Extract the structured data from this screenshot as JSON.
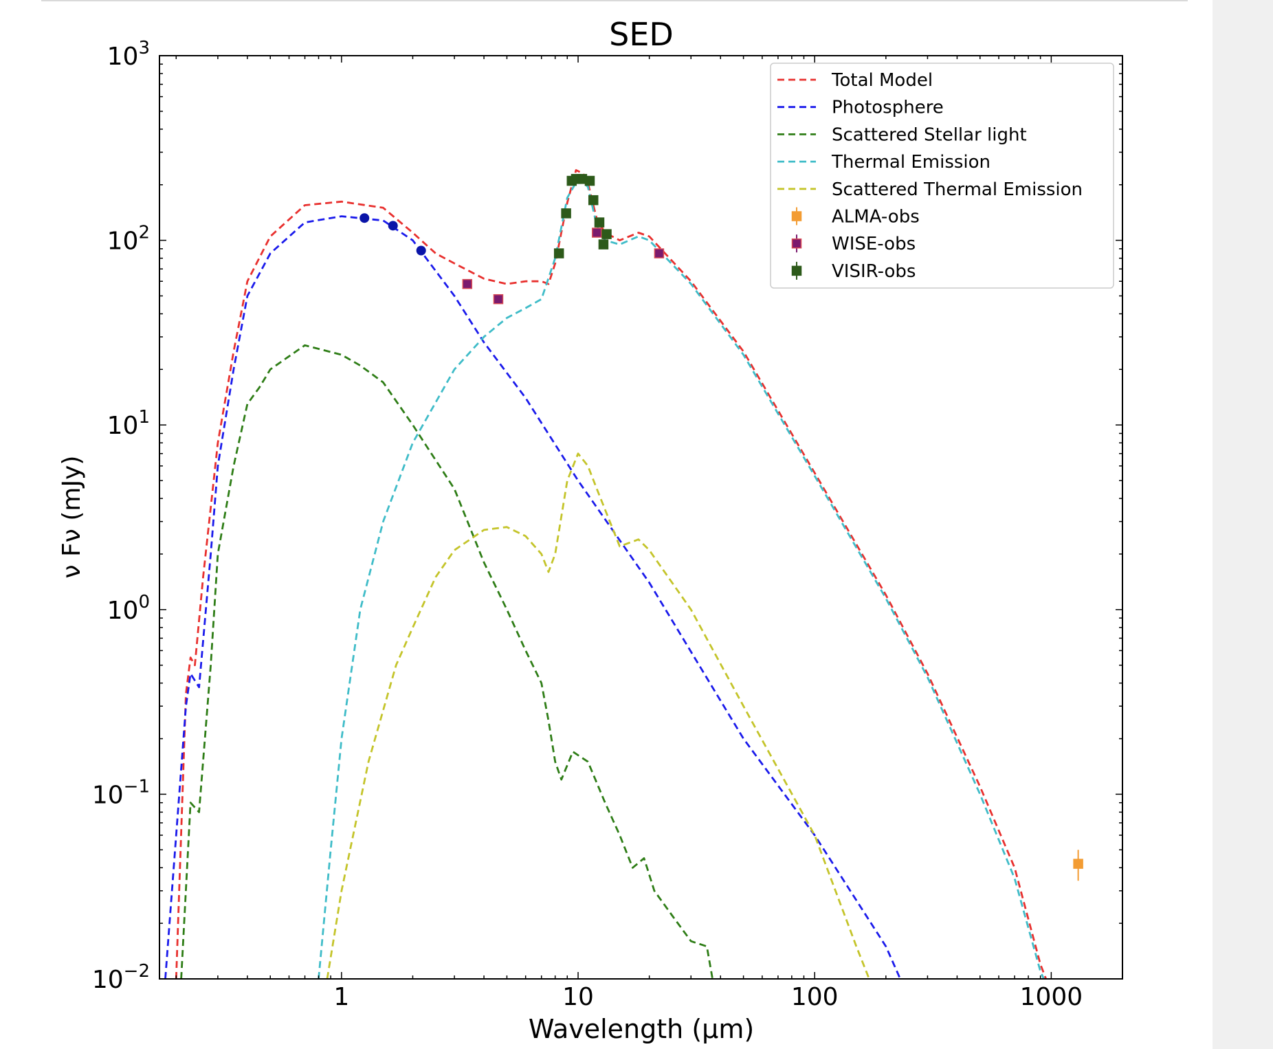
{
  "chart_data": {
    "type": "line",
    "title": "SED",
    "xlabel": "Wavelength (μm)",
    "ylabel": "ν Fν (mJy)",
    "xscale": "log",
    "yscale": "log",
    "xlim": [
      0.17,
      2000
    ],
    "ylim": [
      0.01,
      1000
    ],
    "x_ticks": [
      {
        "value": 1,
        "label": "1"
      },
      {
        "value": 10,
        "label": "10"
      },
      {
        "value": 100,
        "label": "100"
      },
      {
        "value": 1000,
        "label": "1000"
      }
    ],
    "y_ticks": [
      {
        "value": 0.01,
        "base": "10",
        "exp": "−2"
      },
      {
        "value": 0.1,
        "base": "10",
        "exp": "−1"
      },
      {
        "value": 1,
        "base": "10",
        "exp": "0"
      },
      {
        "value": 10,
        "base": "10",
        "exp": "1"
      },
      {
        "value": 100,
        "base": "10",
        "exp": "2"
      },
      {
        "value": 1000,
        "base": "10",
        "exp": "3"
      }
    ],
    "grid": false,
    "legend_position": "top-right",
    "series": [
      {
        "name": "Total Model",
        "color": "#e8302e",
        "style": "dashed",
        "points": [
          [
            0.2,
            0.01
          ],
          [
            0.22,
            0.35
          ],
          [
            0.23,
            0.55
          ],
          [
            0.24,
            0.5
          ],
          [
            0.26,
            1.5
          ],
          [
            0.3,
            8
          ],
          [
            0.35,
            25
          ],
          [
            0.4,
            60
          ],
          [
            0.5,
            105
          ],
          [
            0.7,
            155
          ],
          [
            1,
            162
          ],
          [
            1.5,
            150
          ],
          [
            2,
            110
          ],
          [
            2.5,
            85
          ],
          [
            3,
            75
          ],
          [
            4,
            62
          ],
          [
            5,
            58
          ],
          [
            6,
            60
          ],
          [
            7,
            60
          ],
          [
            7.5,
            58
          ],
          [
            8,
            75
          ],
          [
            9,
            160
          ],
          [
            9.8,
            240
          ],
          [
            10.5,
            230
          ],
          [
            11,
            205
          ],
          [
            12,
            130
          ],
          [
            13,
            110
          ],
          [
            15,
            100
          ],
          [
            18,
            110
          ],
          [
            20,
            105
          ],
          [
            30,
            60
          ],
          [
            50,
            25
          ],
          [
            100,
            5.5
          ],
          [
            200,
            1.2
          ],
          [
            300,
            0.45
          ],
          [
            500,
            0.11
          ],
          [
            700,
            0.04
          ],
          [
            900,
            0.012
          ],
          [
            950,
            0.01
          ]
        ]
      },
      {
        "name": "Photosphere",
        "color": "#1a1aeb",
        "style": "dashed",
        "points": [
          [
            0.18,
            0.01
          ],
          [
            0.22,
            0.3
          ],
          [
            0.23,
            0.45
          ],
          [
            0.25,
            0.38
          ],
          [
            0.28,
            2
          ],
          [
            0.3,
            6
          ],
          [
            0.35,
            20
          ],
          [
            0.4,
            50
          ],
          [
            0.5,
            85
          ],
          [
            0.7,
            125
          ],
          [
            1,
            135
          ],
          [
            1.5,
            128
          ],
          [
            2,
            100
          ],
          [
            3,
            50
          ],
          [
            4,
            28
          ],
          [
            6,
            14
          ],
          [
            10,
            5
          ],
          [
            20,
            1.4
          ],
          [
            50,
            0.2
          ],
          [
            100,
            0.06
          ],
          [
            200,
            0.015
          ],
          [
            230,
            0.01
          ]
        ]
      },
      {
        "name": "Scattered Stellar light",
        "color": "#2e7d16",
        "style": "dashed",
        "points": [
          [
            0.21,
            0.01
          ],
          [
            0.23,
            0.09
          ],
          [
            0.25,
            0.08
          ],
          [
            0.28,
            0.5
          ],
          [
            0.3,
            2
          ],
          [
            0.35,
            6
          ],
          [
            0.4,
            13
          ],
          [
            0.45,
            16
          ],
          [
            0.5,
            20
          ],
          [
            0.7,
            27
          ],
          [
            1,
            24
          ],
          [
            1.2,
            21
          ],
          [
            1.5,
            17
          ],
          [
            2,
            10
          ],
          [
            3,
            4.5
          ],
          [
            4,
            1.8
          ],
          [
            5,
            1
          ],
          [
            6,
            0.6
          ],
          [
            7,
            0.4
          ],
          [
            7.5,
            0.25
          ],
          [
            8,
            0.15
          ],
          [
            8.5,
            0.12
          ],
          [
            9.5,
            0.17
          ],
          [
            11,
            0.15
          ],
          [
            13,
            0.09
          ],
          [
            15,
            0.06
          ],
          [
            17,
            0.04
          ],
          [
            19,
            0.045
          ],
          [
            21,
            0.03
          ],
          [
            25,
            0.022
          ],
          [
            30,
            0.016
          ],
          [
            35,
            0.015
          ],
          [
            37,
            0.01
          ]
        ]
      },
      {
        "name": "Thermal Emission",
        "color": "#3fbcc8",
        "style": "dashed",
        "points": [
          [
            0.8,
            0.01
          ],
          [
            0.9,
            0.05
          ],
          [
            1,
            0.2
          ],
          [
            1.2,
            1
          ],
          [
            1.5,
            3
          ],
          [
            2,
            8
          ],
          [
            3,
            20
          ],
          [
            4,
            30
          ],
          [
            5,
            38
          ],
          [
            6,
            43
          ],
          [
            7,
            48
          ],
          [
            8,
            80
          ],
          [
            9,
            170
          ],
          [
            10,
            215
          ],
          [
            11,
            195
          ],
          [
            12,
            120
          ],
          [
            13,
            100
          ],
          [
            15,
            95
          ],
          [
            18,
            105
          ],
          [
            20,
            100
          ],
          [
            30,
            58
          ],
          [
            50,
            24
          ],
          [
            100,
            5.3
          ],
          [
            200,
            1.15
          ],
          [
            300,
            0.43
          ],
          [
            500,
            0.1
          ],
          [
            700,
            0.035
          ],
          [
            900,
            0.011
          ],
          [
            930,
            0.01
          ]
        ]
      },
      {
        "name": "Scattered Thermal Emission",
        "color": "#c4c42a",
        "style": "dashed",
        "points": [
          [
            0.87,
            0.01
          ],
          [
            1,
            0.03
          ],
          [
            1.3,
            0.15
          ],
          [
            1.7,
            0.5
          ],
          [
            2,
            0.8
          ],
          [
            2.5,
            1.5
          ],
          [
            3,
            2.1
          ],
          [
            4,
            2.7
          ],
          [
            5,
            2.8
          ],
          [
            6,
            2.5
          ],
          [
            7,
            2
          ],
          [
            7.5,
            1.6
          ],
          [
            8,
            2
          ],
          [
            9,
            5
          ],
          [
            10,
            7
          ],
          [
            11,
            6
          ],
          [
            12,
            4.5
          ],
          [
            15,
            2.2
          ],
          [
            18,
            2.4
          ],
          [
            20,
            2.1
          ],
          [
            30,
            1
          ],
          [
            50,
            0.3
          ],
          [
            100,
            0.06
          ],
          [
            150,
            0.015
          ],
          [
            170,
            0.01
          ]
        ]
      }
    ],
    "observations": [
      {
        "name": "ALMA-obs",
        "color": "#f39c33",
        "edge": "#f39c33",
        "marker": "square",
        "points": [
          {
            "x": 1300,
            "y": 0.042,
            "ylow": 0.034,
            "yhigh": 0.05
          }
        ]
      },
      {
        "name": "WISE-obs",
        "color": "#7a1a6e",
        "edge": "#d84a55",
        "marker": "square",
        "points": [
          {
            "x": 3.4,
            "y": 58
          },
          {
            "x": 4.6,
            "y": 48
          },
          {
            "x": 12,
            "y": 110
          },
          {
            "x": 22,
            "y": 85
          }
        ]
      },
      {
        "name": "VISIR-obs",
        "color": "#2d5a1a",
        "edge": "#2d5a1a",
        "marker": "square",
        "points": [
          {
            "x": 8.3,
            "y": 85
          },
          {
            "x": 8.9,
            "y": 140
          },
          {
            "x": 9.4,
            "y": 210
          },
          {
            "x": 9.8,
            "y": 215
          },
          {
            "x": 10.4,
            "y": 215
          },
          {
            "x": 11.2,
            "y": 210
          },
          {
            "x": 11.6,
            "y": 165
          },
          {
            "x": 12.3,
            "y": 125
          },
          {
            "x": 12.8,
            "y": 95
          },
          {
            "x": 13.2,
            "y": 108
          }
        ]
      }
    ],
    "photometry_points": {
      "color": "#0a14a8",
      "marker": "circle",
      "points": [
        {
          "x": 1.25,
          "y": 132
        },
        {
          "x": 1.65,
          "y": 120
        },
        {
          "x": 2.17,
          "y": 88
        }
      ]
    }
  }
}
